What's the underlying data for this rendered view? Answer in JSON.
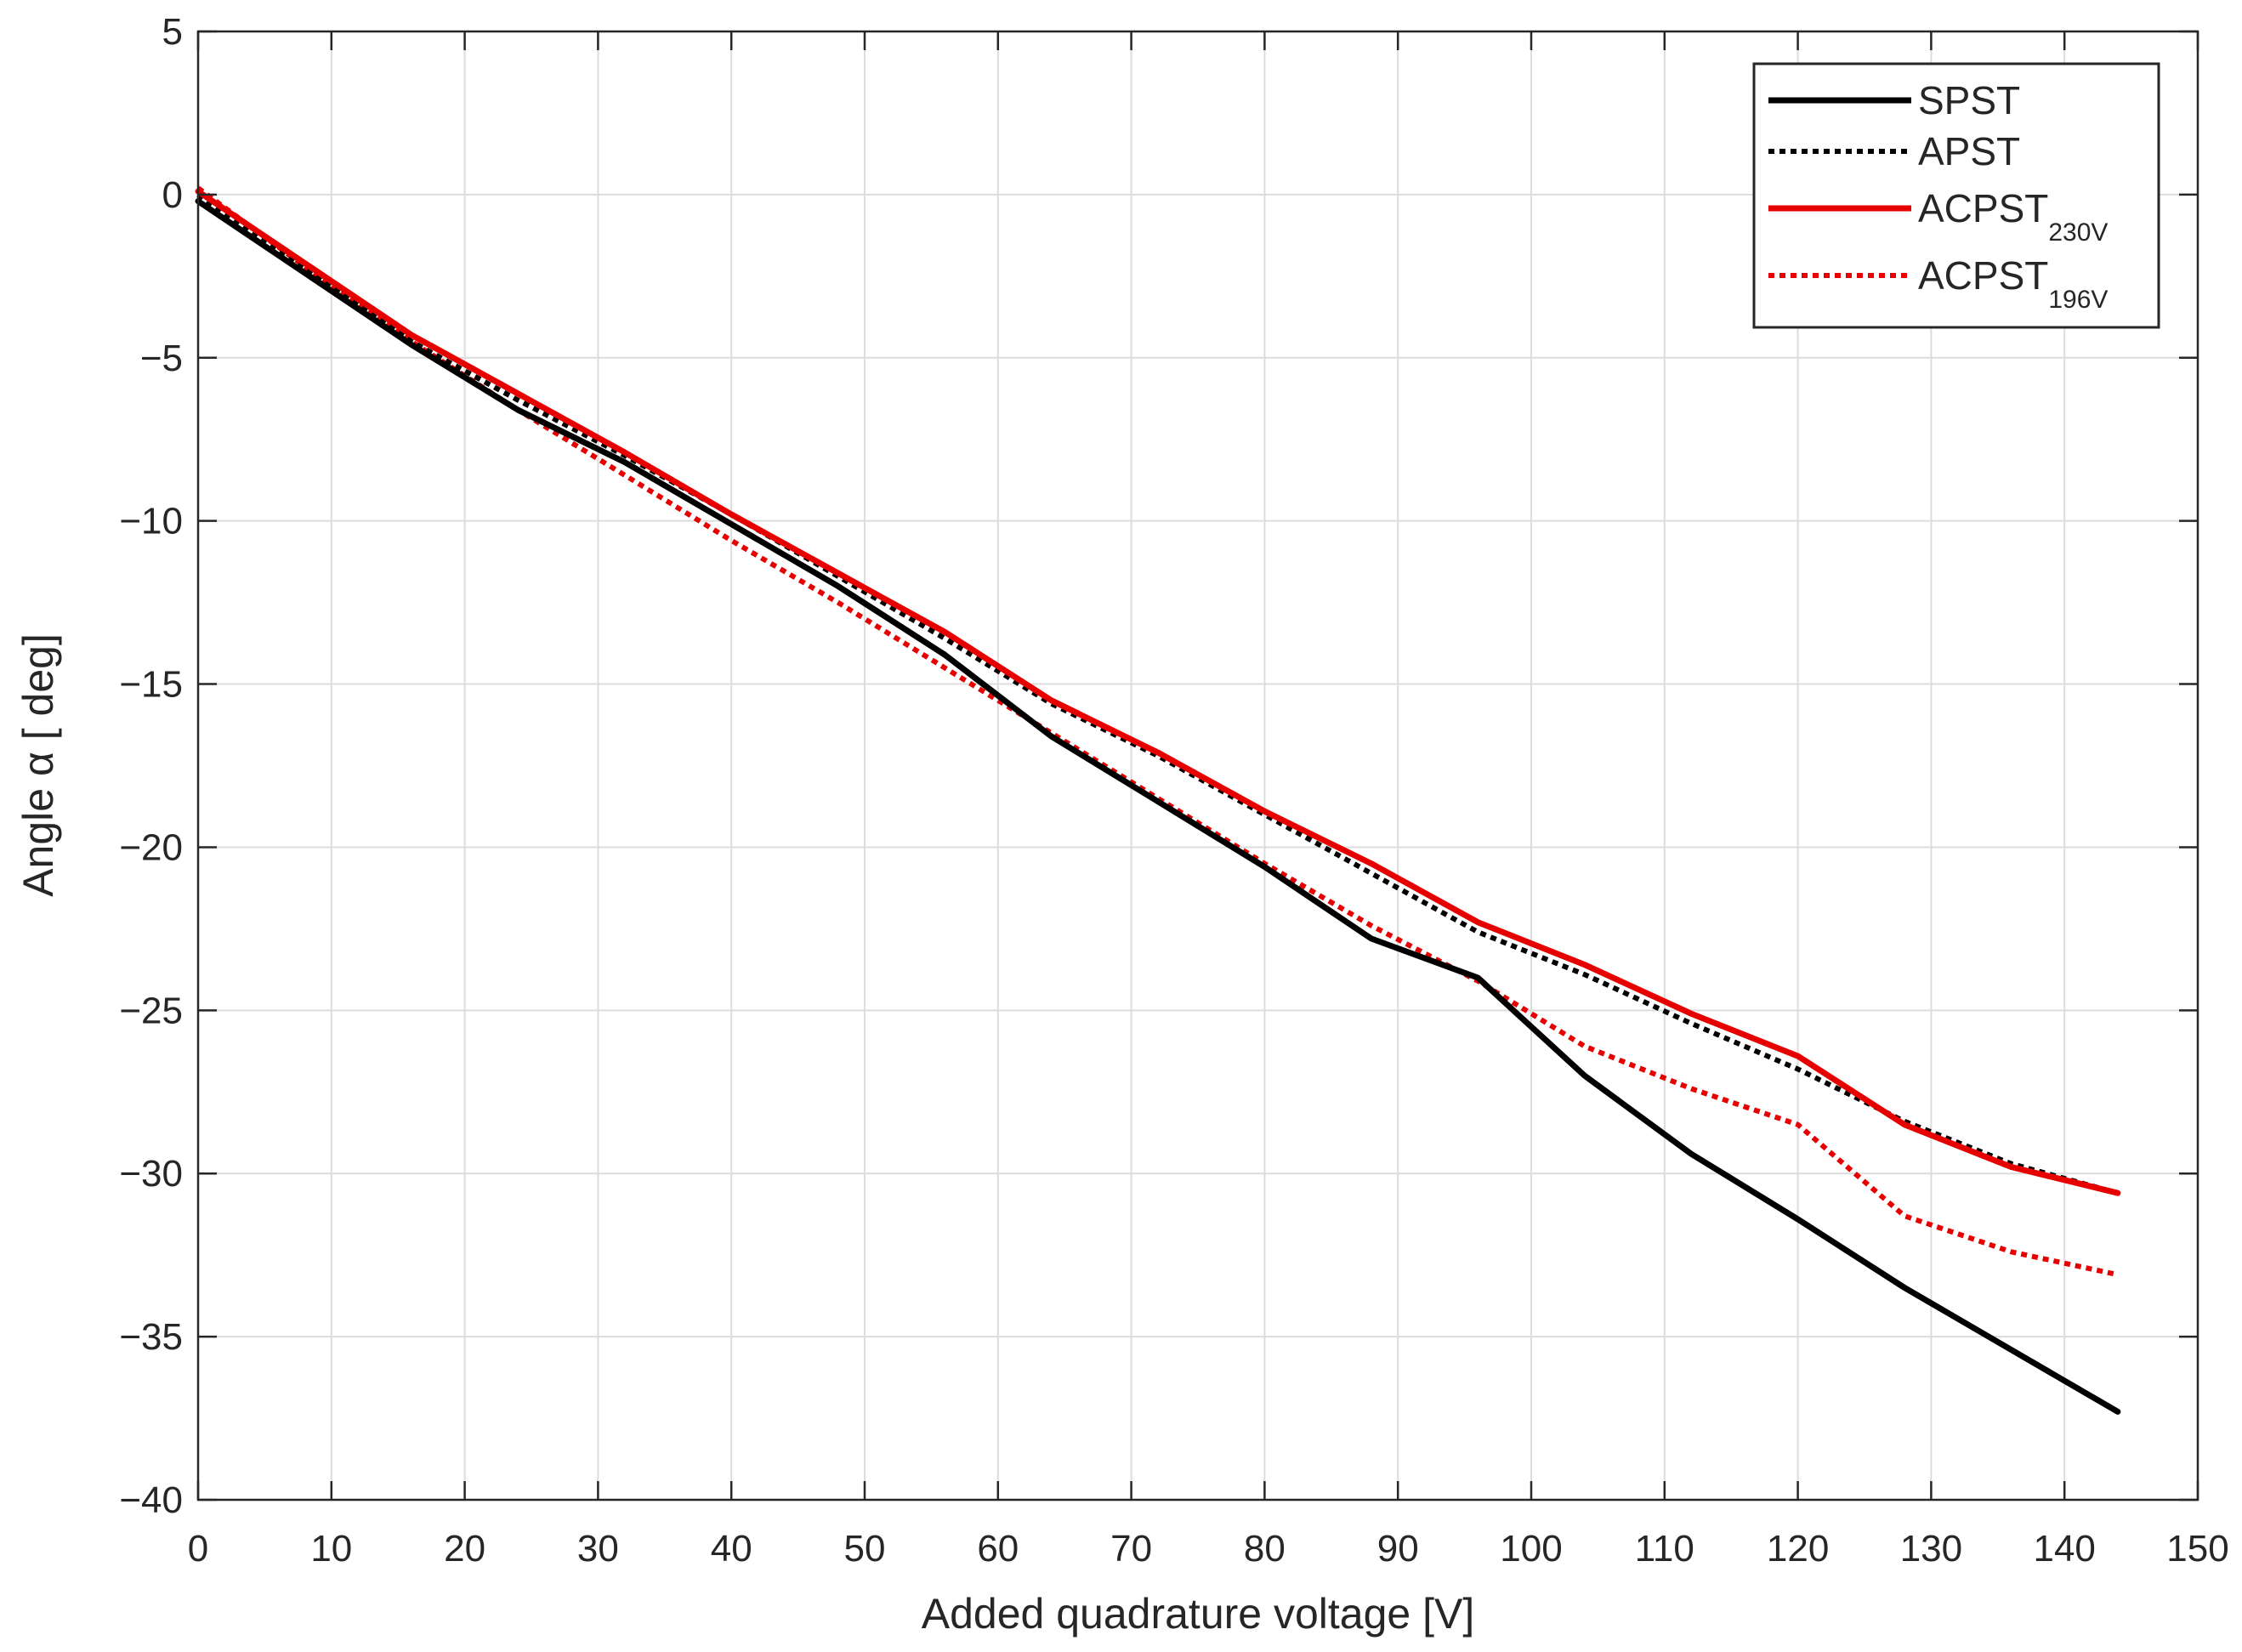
{
  "chart_data": {
    "type": "line",
    "xlabel": "Added quadrature voltage [V]",
    "ylabel": "Angle α [ deg]",
    "xlim": [
      0,
      150
    ],
    "ylim": [
      -40,
      5
    ],
    "xticks": [
      0,
      10,
      20,
      30,
      40,
      50,
      60,
      70,
      80,
      90,
      100,
      110,
      120,
      130,
      140,
      150
    ],
    "yticks": [
      5,
      0,
      -5,
      -10,
      -15,
      -20,
      -25,
      -30,
      -35,
      -40
    ],
    "ytick_labels": [
      "5",
      "0",
      "−5",
      "−10",
      "−15",
      "−20",
      "−25",
      "−30",
      "−35",
      "−40"
    ],
    "grid": true,
    "legend_position": "top-right",
    "series": [
      {
        "name": "SPST",
        "name_main": "SPST",
        "name_sub": "",
        "color": "#000000",
        "style": "solid",
        "x": [
          0,
          8,
          16,
          24,
          32,
          40,
          48,
          56,
          64,
          72,
          80,
          88,
          96,
          104,
          112,
          120,
          128,
          136,
          144
        ],
        "y": [
          -0.2,
          -2.4,
          -4.6,
          -6.6,
          -8.2,
          -10.1,
          -12.0,
          -14.1,
          -16.6,
          -18.6,
          -20.6,
          -22.8,
          -24.0,
          -27.0,
          -29.4,
          -31.4,
          -33.5,
          -35.4,
          -37.3
        ]
      },
      {
        "name": "APST",
        "name_main": "APST",
        "name_sub": "",
        "color": "#000000",
        "style": "dotted",
        "x": [
          0,
          8,
          16,
          24,
          32,
          40,
          48,
          56,
          64,
          72,
          80,
          88,
          96,
          104,
          112,
          120,
          128,
          136,
          144
        ],
        "y": [
          0.0,
          -2.3,
          -4.5,
          -6.3,
          -8.0,
          -9.8,
          -11.7,
          -13.6,
          -15.6,
          -17.2,
          -19.0,
          -20.8,
          -22.6,
          -23.9,
          -25.4,
          -26.8,
          -28.4,
          -29.7,
          -30.6
        ]
      },
      {
        "name": "ACPST230V",
        "name_main": "ACPST",
        "name_sub": "230V",
        "color": "#e60000",
        "style": "solid",
        "x": [
          0,
          8,
          16,
          24,
          32,
          40,
          48,
          56,
          64,
          72,
          80,
          88,
          96,
          104,
          112,
          120,
          128,
          136,
          144
        ],
        "y": [
          0.1,
          -2.1,
          -4.3,
          -6.1,
          -7.9,
          -9.8,
          -11.6,
          -13.4,
          -15.5,
          -17.1,
          -18.9,
          -20.5,
          -22.3,
          -23.6,
          -25.1,
          -26.4,
          -28.5,
          -29.8,
          -30.6
        ]
      },
      {
        "name": "ACPST196V",
        "name_main": "ACPST",
        "name_sub": "196V",
        "color": "#e60000",
        "style": "dotted",
        "x": [
          0,
          8,
          16,
          24,
          32,
          40,
          48,
          56,
          64,
          72,
          80,
          88,
          96,
          104,
          112,
          120,
          128,
          136,
          144
        ],
        "y": [
          0.2,
          -2.2,
          -4.5,
          -6.6,
          -8.6,
          -10.6,
          -12.5,
          -14.5,
          -16.5,
          -18.5,
          -20.5,
          -22.4,
          -24.1,
          -26.1,
          -27.4,
          -28.5,
          -31.3,
          -32.4,
          -33.1
        ]
      }
    ]
  }
}
